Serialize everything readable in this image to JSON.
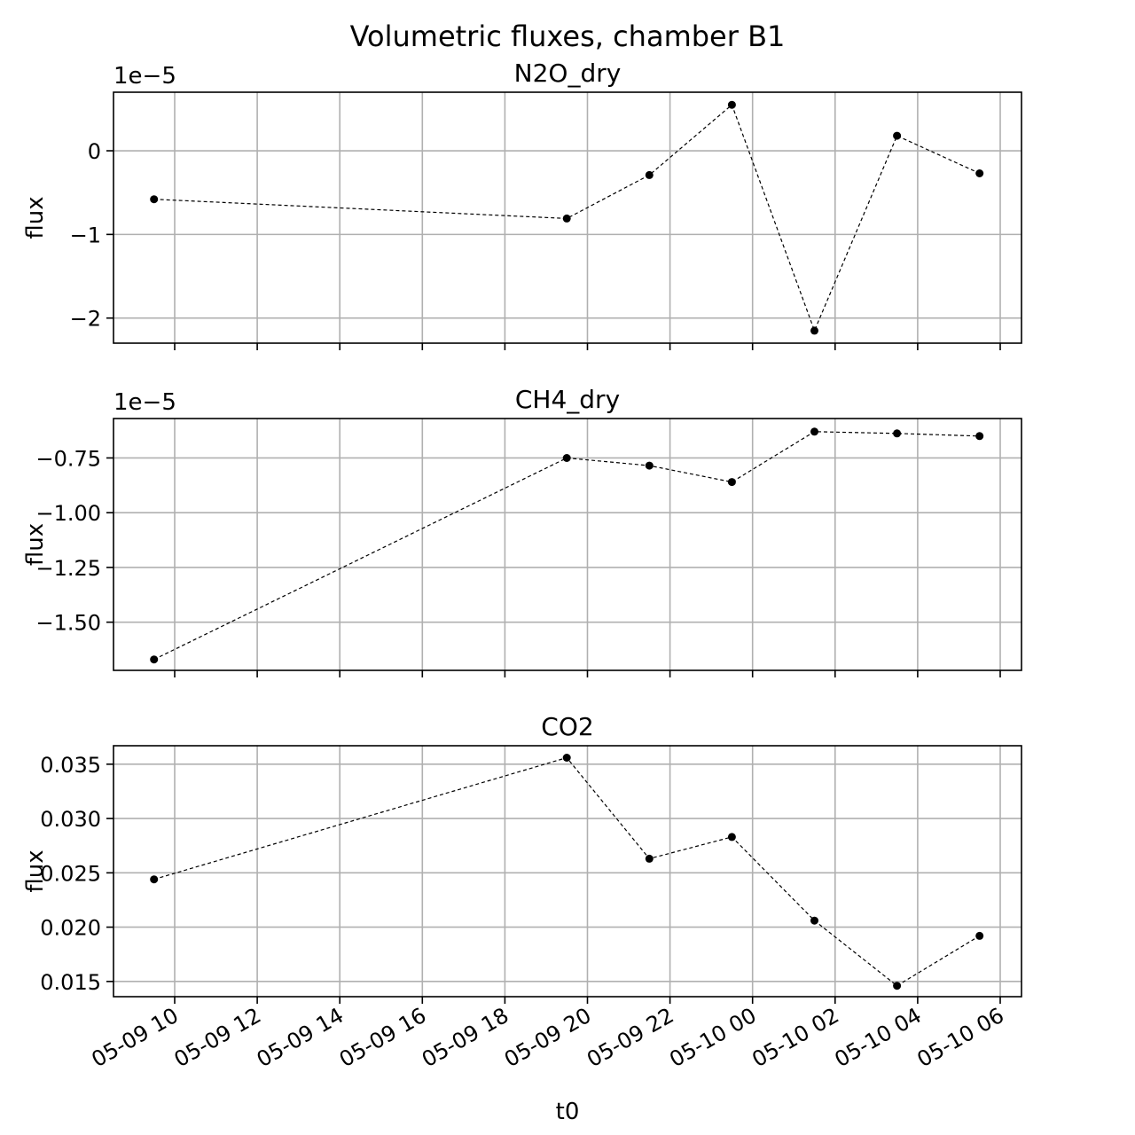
{
  "figure": {
    "title": "Volumetric fluxes, chamber B1"
  },
  "x_axis": {
    "label": "t0",
    "ticks": [
      "05-09 10",
      "05-09 12",
      "05-09 14",
      "05-09 16",
      "05-09 18",
      "05-09 20",
      "05-09 22",
      "05-10 00",
      "05-10 02",
      "05-10 04",
      "05-10 06"
    ]
  },
  "style": {
    "line_color": "#000000",
    "grid_color": "#b0b0b0",
    "line_dash": "dashed",
    "marker": "filled-circle"
  },
  "chart_data": [
    {
      "type": "line",
      "title": "N2O_dry",
      "ylabel": "flux",
      "offset_text": "1e−5",
      "xlabel": "",
      "x": [
        "05-09 09:30",
        "05-09 19:30",
        "05-09 21:30",
        "05-09 23:30",
        "05-10 01:30",
        "05-10 03:30",
        "05-10 05:30"
      ],
      "values": [
        -0.58,
        -0.81,
        -0.29,
        0.55,
        -2.15,
        0.18,
        -0.27
      ],
      "ylim": [
        -2.3,
        0.7
      ],
      "yticks": [
        0,
        -1,
        -2
      ],
      "ytick_labels": [
        "0",
        "−1",
        "−2"
      ],
      "grid": true
    },
    {
      "type": "line",
      "title": "CH4_dry",
      "ylabel": "flux",
      "offset_text": "1e−5",
      "xlabel": "",
      "x": [
        "05-09 09:30",
        "05-09 19:30",
        "05-09 21:30",
        "05-09 23:30",
        "05-10 01:30",
        "05-10 03:30",
        "05-10 05:30"
      ],
      "values": [
        -1.67,
        -0.75,
        -0.785,
        -0.86,
        -0.63,
        -0.638,
        -0.65
      ],
      "ylim": [
        -1.72,
        -0.57
      ],
      "yticks": [
        -0.75,
        -1.0,
        -1.25,
        -1.5
      ],
      "ytick_labels": [
        "−0.75",
        "−1.00",
        "−1.25",
        "−1.50"
      ],
      "grid": true
    },
    {
      "type": "line",
      "title": "CO2",
      "ylabel": "flux",
      "offset_text": "",
      "xlabel": "t0",
      "x": [
        "05-09 09:30",
        "05-09 19:30",
        "05-09 21:30",
        "05-09 23:30",
        "05-10 01:30",
        "05-10 03:30",
        "05-10 05:30"
      ],
      "values": [
        0.0244,
        0.0356,
        0.0263,
        0.0283,
        0.0206,
        0.0146,
        0.0192
      ],
      "ylim": [
        0.0136,
        0.0367
      ],
      "yticks": [
        0.035,
        0.03,
        0.025,
        0.02,
        0.015
      ],
      "ytick_labels": [
        "0.035",
        "0.030",
        "0.025",
        "0.020",
        "0.015"
      ],
      "grid": true
    }
  ]
}
